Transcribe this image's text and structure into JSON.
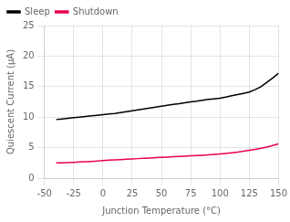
{
  "chart_data": {
    "type": "line",
    "xlabel": "Junction Temperature (°C)",
    "ylabel": "Quiescent Current (µA)",
    "x": [
      -40,
      -35,
      -30,
      -25,
      -20,
      -15,
      -10,
      -5,
      0,
      5,
      10,
      15,
      20,
      25,
      30,
      35,
      40,
      45,
      50,
      55,
      60,
      65,
      70,
      75,
      80,
      85,
      90,
      95,
      100,
      105,
      110,
      115,
      120,
      125,
      130,
      135,
      140,
      145,
      150
    ],
    "series": [
      {
        "name": "Sleep",
        "color": "#000000",
        "values": [
          9.6,
          9.7,
          9.8,
          9.9,
          10.0,
          10.1,
          10.2,
          10.3,
          10.4,
          10.5,
          10.6,
          10.75,
          10.9,
          11.05,
          11.2,
          11.35,
          11.5,
          11.65,
          11.8,
          11.95,
          12.1,
          12.2,
          12.35,
          12.5,
          12.6,
          12.75,
          12.9,
          13.0,
          13.1,
          13.3,
          13.5,
          13.7,
          13.9,
          14.1,
          14.5,
          15.0,
          15.7,
          16.4,
          17.2
        ]
      },
      {
        "name": "Shutdown",
        "color": "#e8004c",
        "values": [
          2.5,
          2.5,
          2.55,
          2.6,
          2.65,
          2.7,
          2.75,
          2.8,
          2.9,
          2.95,
          3.0,
          3.05,
          3.1,
          3.15,
          3.2,
          3.25,
          3.3,
          3.35,
          3.4,
          3.45,
          3.5,
          3.55,
          3.6,
          3.65,
          3.7,
          3.75,
          3.8,
          3.9,
          3.95,
          4.05,
          4.15,
          4.25,
          4.4,
          4.55,
          4.7,
          4.9,
          5.1,
          5.35,
          5.6
        ]
      }
    ],
    "xlim": [
      -50,
      150
    ],
    "ylim": [
      0,
      25
    ],
    "xticks": [
      -50,
      -25,
      0,
      25,
      50,
      75,
      100,
      125,
      150
    ],
    "yticks": [
      0,
      5,
      10,
      15,
      20,
      25
    ],
    "grid": true,
    "legend": "upper left"
  }
}
